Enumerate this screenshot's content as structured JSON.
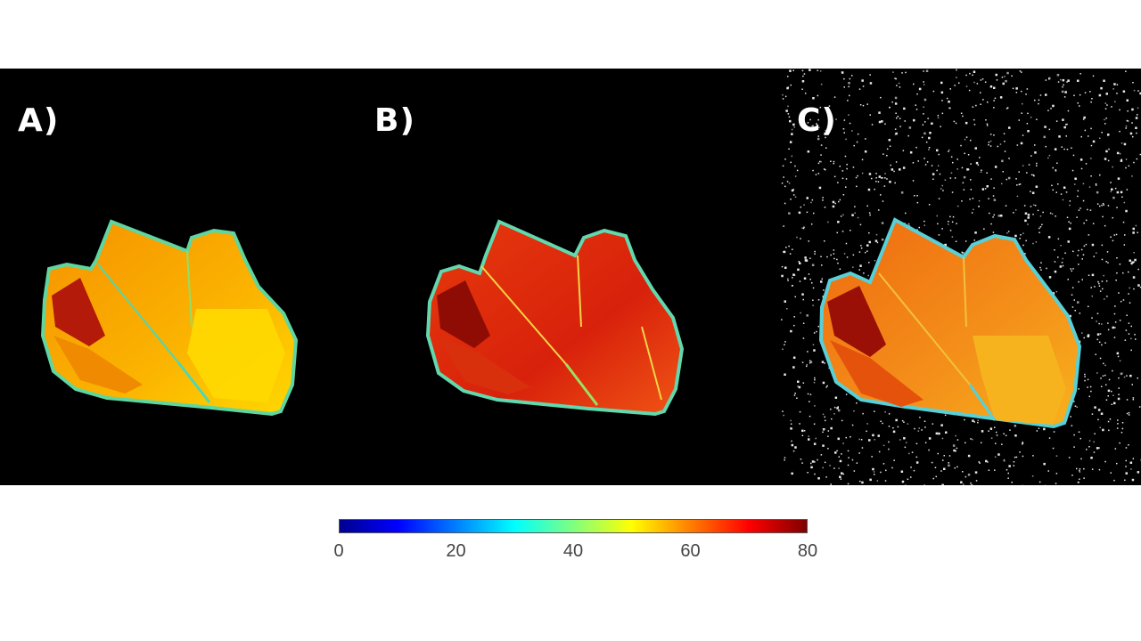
{
  "panels": [
    {
      "label": "A)"
    },
    {
      "label": "B)"
    },
    {
      "label": "C)"
    }
  ],
  "colorbar": {
    "ticks": [
      "0",
      "20",
      "40",
      "60",
      "80"
    ],
    "colormap": "jet",
    "min": 0,
    "max": 80
  },
  "colors": {
    "background": "#000000",
    "panel_a_fill": "#f7a800",
    "panel_b_fill": "#d9260b",
    "panel_c_fill": "#f07a12"
  }
}
